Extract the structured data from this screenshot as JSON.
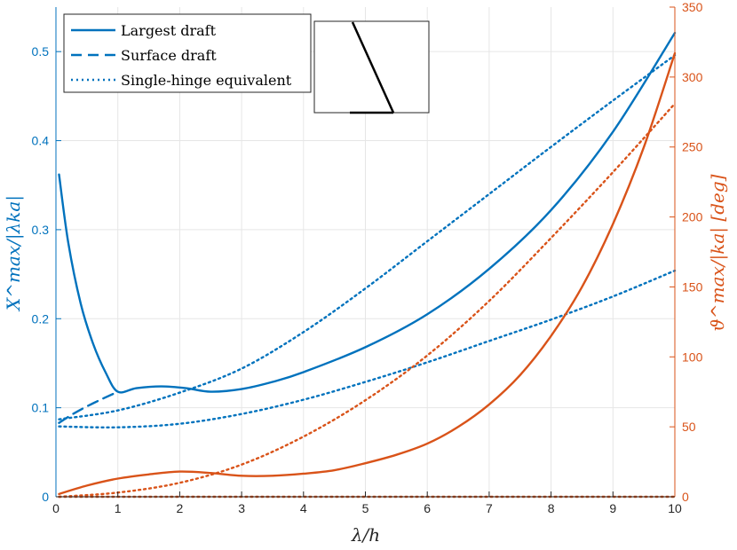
{
  "chart_data": {
    "type": "line",
    "xlabel": "λ/h",
    "ylabel_left": "X^max/|λka|",
    "ylabel_right": "ϑ^max/|ka| [deg]",
    "xlim": [
      0,
      10
    ],
    "ylim_left": [
      0,
      0.55
    ],
    "ylim_right": [
      0,
      350
    ],
    "x_ticks": [
      0,
      1,
      2,
      3,
      4,
      5,
      6,
      7,
      8,
      9,
      10
    ],
    "y_left_ticks": [
      0,
      0.1,
      0.2,
      0.3,
      0.4,
      0.5
    ],
    "y_right_ticks": [
      0,
      50,
      100,
      150,
      200,
      250,
      300,
      350
    ],
    "grid": true,
    "legend_position": "top-left",
    "colors": {
      "left": "#0072BD",
      "right": "#D95319"
    },
    "legend": [
      {
        "label": "Largest draft",
        "style": "solid"
      },
      {
        "label": "Surface draft",
        "style": "dashed"
      },
      {
        "label": "Single-hinge equivalent",
        "style": "dotted"
      }
    ],
    "series": [
      {
        "axis": "left",
        "style": "solid",
        "points": [
          [
            0.05,
            0.362
          ],
          [
            0.2,
            0.285
          ],
          [
            0.4,
            0.217
          ],
          [
            0.6,
            0.172
          ],
          [
            0.8,
            0.14
          ],
          [
            1.0,
            0.118
          ],
          [
            1.3,
            0.122
          ],
          [
            1.7,
            0.124
          ],
          [
            2.1,
            0.122
          ],
          [
            2.5,
            0.118
          ],
          [
            3.0,
            0.121
          ],
          [
            3.5,
            0.129
          ],
          [
            4.0,
            0.14
          ],
          [
            5.0,
            0.168
          ],
          [
            6.0,
            0.205
          ],
          [
            7.0,
            0.256
          ],
          [
            8.0,
            0.322
          ],
          [
            9.0,
            0.41
          ],
          [
            10.0,
            0.521
          ]
        ]
      },
      {
        "axis": "left",
        "style": "dashed",
        "points": [
          [
            0.05,
            0.083
          ],
          [
            0.3,
            0.094
          ],
          [
            0.6,
            0.105
          ],
          [
            1.0,
            0.118
          ]
        ]
      },
      {
        "axis": "left",
        "style": "dotted",
        "points": [
          [
            0.05,
            0.087
          ],
          [
            1.0,
            0.097
          ],
          [
            2.0,
            0.117
          ],
          [
            3.0,
            0.144
          ],
          [
            4.0,
            0.185
          ],
          [
            5.0,
            0.234
          ],
          [
            6.0,
            0.287
          ],
          [
            7.0,
            0.34
          ],
          [
            8.0,
            0.393
          ],
          [
            9.0,
            0.445
          ],
          [
            10.0,
            0.496
          ]
        ]
      },
      {
        "axis": "left",
        "style": "dotted",
        "points": [
          [
            0.05,
            0.079
          ],
          [
            1.0,
            0.078
          ],
          [
            2.0,
            0.082
          ],
          [
            3.0,
            0.093
          ],
          [
            4.0,
            0.109
          ],
          [
            5.0,
            0.129
          ],
          [
            6.0,
            0.151
          ],
          [
            7.0,
            0.175
          ],
          [
            8.0,
            0.199
          ],
          [
            9.0,
            0.225
          ],
          [
            10.0,
            0.254
          ]
        ]
      },
      {
        "axis": "right",
        "style": "solid",
        "points": [
          [
            0.05,
            2
          ],
          [
            0.5,
            8
          ],
          [
            1.0,
            13
          ],
          [
            1.5,
            16
          ],
          [
            2.0,
            18
          ],
          [
            2.5,
            17
          ],
          [
            3.0,
            15
          ],
          [
            3.5,
            15
          ],
          [
            4.0,
            16.5
          ],
          [
            4.5,
            19
          ],
          [
            5.0,
            24
          ],
          [
            5.5,
            30
          ],
          [
            6.0,
            38
          ],
          [
            6.5,
            50
          ],
          [
            7.0,
            66
          ],
          [
            7.5,
            87
          ],
          [
            8.0,
            115
          ],
          [
            8.5,
            150
          ],
          [
            9.0,
            195
          ],
          [
            9.5,
            250
          ],
          [
            10.0,
            317
          ]
        ]
      },
      {
        "axis": "right",
        "style": "dotted",
        "points": [
          [
            0.05,
            0
          ],
          [
            1.0,
            3
          ],
          [
            2.0,
            10
          ],
          [
            3.0,
            23
          ],
          [
            4.0,
            43
          ],
          [
            5.0,
            69
          ],
          [
            6.0,
            101
          ],
          [
            7.0,
            140
          ],
          [
            8.0,
            185
          ],
          [
            9.0,
            232
          ],
          [
            10.0,
            281
          ]
        ]
      },
      {
        "axis": "right",
        "style": "dotted",
        "points": [
          [
            0.05,
            0
          ],
          [
            10.0,
            0
          ]
        ]
      }
    ]
  }
}
